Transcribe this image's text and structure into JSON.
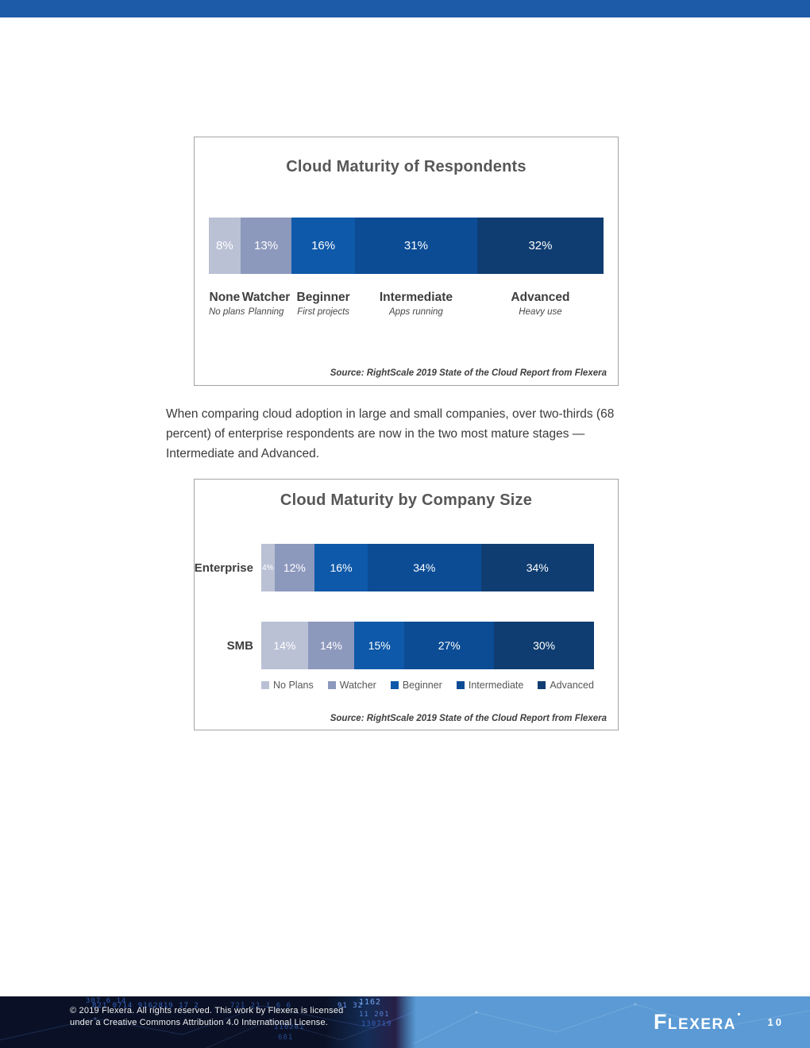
{
  "page": {
    "paragraph": "When comparing cloud adoption in large and small companies, over two-thirds (68 percent) of enterprise respondents are now in the two most mature stages — Intermediate and Advanced.",
    "number": "10",
    "footer": {
      "copyright_line1": "© 2019 Flexera. All rights reserved.  This work by Flexera is licensed",
      "copyright_line2": "under a Creative Commons Attribution 4.0 International License.",
      "logo_text": "Flexera",
      "pattern_digits": [
        "307 6 14",
        "821 0714 9162819 17 2",
        "721  21    1 6 6",
        "91 32",
        "1162",
        "11 201",
        "130719",
        "116281",
        "681"
      ]
    }
  },
  "colors": {
    "top_bar": "#1d5ba9",
    "footer_dark": "#0a1126",
    "footer_light": "#5b9ad5",
    "no_plans": "#bac1d5",
    "watcher": "#8d98bd",
    "beginner": "#0e59a9",
    "intermediate": "#0b4c95",
    "advanced": "#0f3d71"
  },
  "chart_data": [
    {
      "type": "bar",
      "variant": "horizontal-stacked",
      "title": "Cloud Maturity of Respondents",
      "xlim": [
        0,
        100
      ],
      "segments": [
        {
          "label": "None",
          "sublabel": "No plans",
          "value": 8,
          "display": "8%",
          "color": "#bac1d5"
        },
        {
          "label": "Watcher",
          "sublabel": "Planning",
          "value": 13,
          "display": "13%",
          "color": "#8d98bd"
        },
        {
          "label": "Beginner",
          "sublabel": "First projects",
          "value": 16,
          "display": "16%",
          "color": "#0e59a9"
        },
        {
          "label": "Intermediate",
          "sublabel": "Apps running",
          "value": 31,
          "display": "31%",
          "color": "#0b4c95"
        },
        {
          "label": "Advanced",
          "sublabel": "Heavy use",
          "value": 32,
          "display": "32%",
          "color": "#0f3d71"
        }
      ],
      "source": "Source: RightScale 2019 State of the Cloud Report from Flexera"
    },
    {
      "type": "bar",
      "variant": "horizontal-stacked",
      "title": "Cloud Maturity by Company Size",
      "xlim": [
        0,
        100
      ],
      "categories": [
        "Enterprise",
        "SMB"
      ],
      "series": [
        {
          "name": "No Plans",
          "color": "#bac1d5",
          "values": [
            4,
            14
          ],
          "displays": [
            "4%",
            "14%"
          ]
        },
        {
          "name": "Watcher",
          "color": "#8d98bd",
          "values": [
            12,
            14
          ],
          "displays": [
            "12%",
            "14%"
          ]
        },
        {
          "name": "Beginner",
          "color": "#0e59a9",
          "values": [
            16,
            15
          ],
          "displays": [
            "16%",
            "15%"
          ]
        },
        {
          "name": "Intermediate",
          "color": "#0b4c95",
          "values": [
            34,
            27
          ],
          "displays": [
            "34%",
            "27%"
          ]
        },
        {
          "name": "Advanced",
          "color": "#0f3d71",
          "values": [
            34,
            30
          ],
          "displays": [
            "34%",
            "30%"
          ]
        }
      ],
      "legend": [
        "No Plans",
        "Watcher",
        "Beginner",
        "Intermediate",
        "Advanced"
      ],
      "legend_position": "bottom",
      "source": "Source: RightScale 2019 State of the Cloud Report from Flexera"
    }
  ]
}
